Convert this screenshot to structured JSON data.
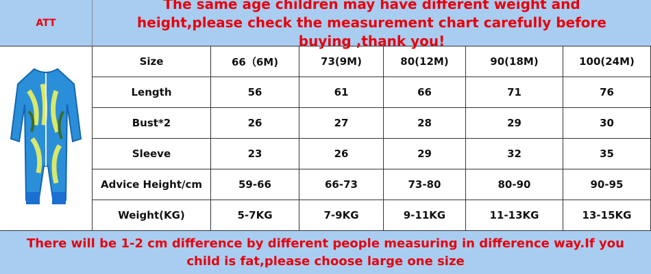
{
  "header": {
    "brand": "ATT",
    "notice": "The same age children may have different weight and height,please check the measurement chart carefully before buying ,thank you!"
  },
  "table": {
    "rows": [
      [
        "Size",
        "66（6M)",
        "73(9M)",
        "80(12M)",
        "90(18M)",
        "100(24M)"
      ],
      [
        "Length",
        "56",
        "61",
        "66",
        "71",
        "76"
      ],
      [
        "Bust*2",
        "26",
        "27",
        "28",
        "29",
        "30"
      ],
      [
        "Sleeve",
        "23",
        "26",
        "29",
        "32",
        "35"
      ],
      [
        "Advice Height/cm",
        "59-66",
        "66-73",
        "73-80",
        "80-90",
        "90-95"
      ],
      [
        "Weight(KG)",
        "5-7KG",
        "7-9KG",
        "9-11KG",
        "11-13KG",
        "13-15KG"
      ]
    ]
  },
  "footer": {
    "note": "There will be 1-2 cm difference by different people measuring in difference way.If you child is fat,please choose large one size"
  }
}
